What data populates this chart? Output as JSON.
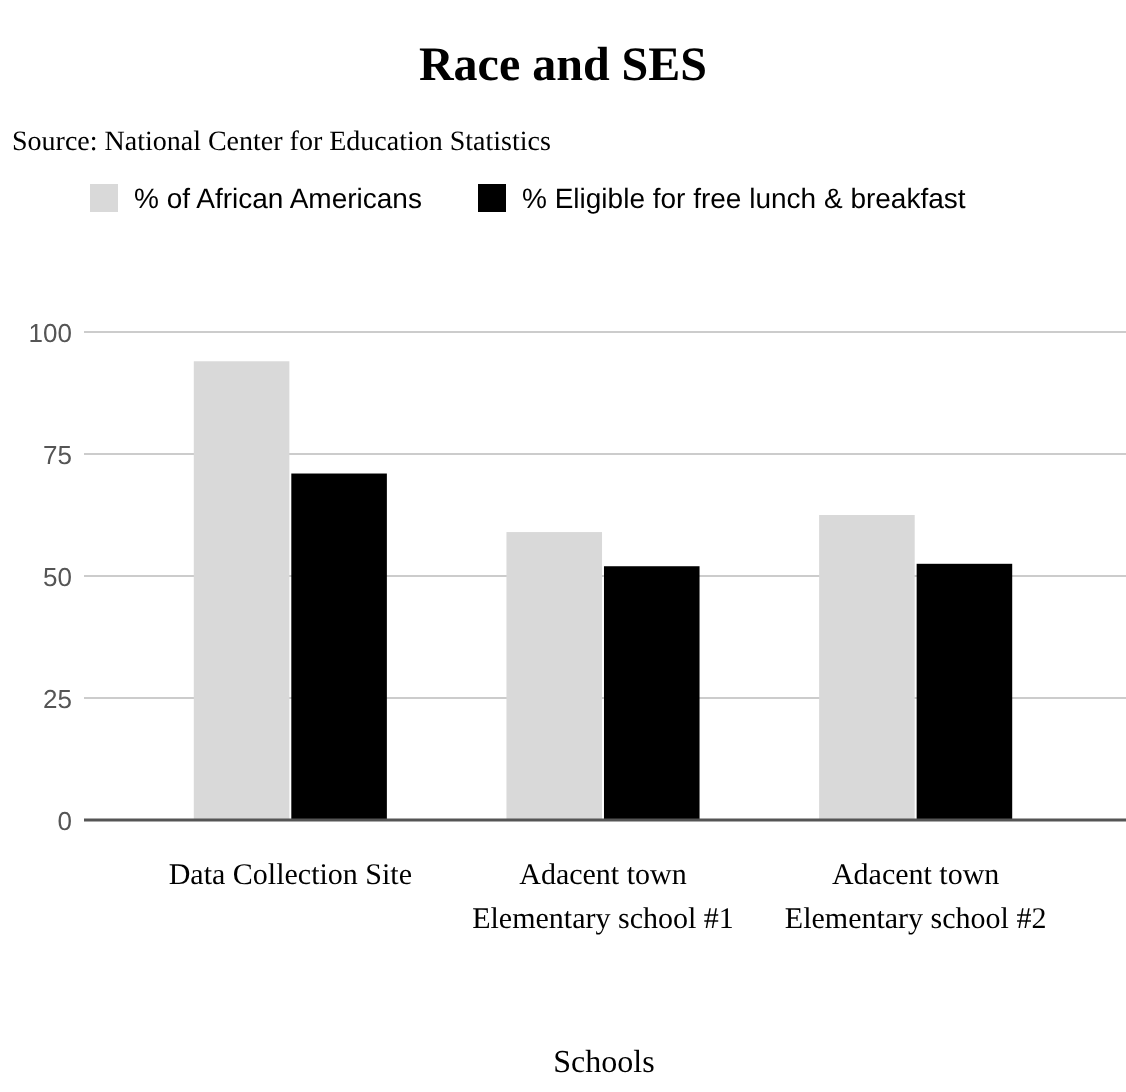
{
  "chart_data": {
    "type": "bar",
    "title": "Race and SES",
    "subtitle": "Source: National Center for Education Statistics",
    "xlabel": "Schools",
    "categories": [
      "Data Collection Site",
      "Adacent town Elementary school #1",
      "Adacent town Elementary school #2"
    ],
    "series": [
      {
        "name": "% of African Americans",
        "color": "#d9d9d9",
        "values": [
          94,
          59,
          62.5
        ]
      },
      {
        "name": "% Eligible for free lunch & breakfast",
        "color": "#000000",
        "values": [
          71,
          52,
          52.5
        ]
      }
    ],
    "ylim": [
      0,
      100
    ],
    "yticks": [
      0,
      25,
      50,
      75,
      100
    ],
    "grid": "y",
    "legend": "top"
  }
}
